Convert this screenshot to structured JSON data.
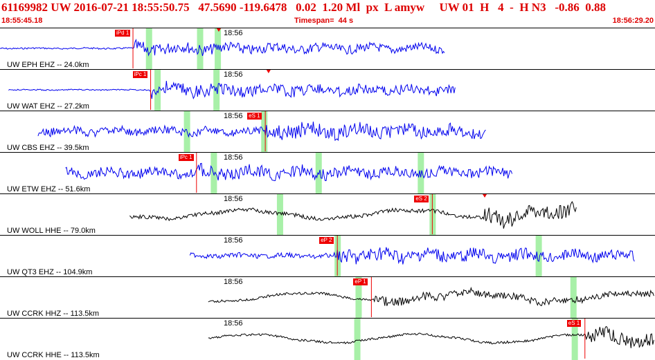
{
  "header": {
    "event_line": "61169982 UW 2016-07-21 18:55:50.75   47.5690 -119.6478   0.02  1.20 Ml  px  L amyw     UW 01  H   4  -  H N3   -0.86  0.88",
    "start_time": "18:55:45.18",
    "timespan": "Timespan=  44 s",
    "end_time": "18:56:29.20"
  },
  "colors": {
    "header_text": "#dd0000",
    "trace_blue": "#0000ee",
    "trace_black": "#000000",
    "pick": "#ee0000",
    "window": "#a8f0a8"
  },
  "panels": [
    {
      "label": "UW EPH EHZ -- 24.0km",
      "time_mark": "18:56",
      "color": "blue",
      "trace": {
        "start_frac": 0.0,
        "onset_frac": 0.205,
        "end_frac": 0.68,
        "amp": 0.34,
        "noise": 0.04
      },
      "picks": [
        {
          "label": "iPd 1",
          "time_frac": 0.203
        }
      ],
      "windows": [
        0.227,
        0.305,
        0.332
      ],
      "markers": [
        0.334
      ]
    },
    {
      "label": "UW WAT EHZ -- 27.2km",
      "time_mark": "18:56",
      "color": "blue",
      "trace": {
        "start_frac": 0.013,
        "onset_frac": 0.23,
        "end_frac": 0.695,
        "amp": 0.38,
        "noise": 0.03
      },
      "picks": [
        {
          "label": "iPc 1",
          "time_frac": 0.23
        }
      ],
      "windows": [
        0.24,
        0.33
      ],
      "markers": [
        0.41
      ]
    },
    {
      "label": "UW CBS EHZ -- 39.5km",
      "time_mark": "18:56",
      "color": "blue",
      "trace": {
        "start_frac": 0.058,
        "onset_frac": 0.405,
        "end_frac": 0.742,
        "amp": 0.45,
        "noise": 0.22
      },
      "picks": [
        {
          "label": "eS 1",
          "time_frac": 0.405
        }
      ],
      "windows": [
        0.285,
        0.403
      ],
      "markers": []
    },
    {
      "label": "UW ETW EHZ -- 51.6km",
      "time_mark": "18:56",
      "color": "blue",
      "trace": {
        "start_frac": 0.1,
        "onset_frac": 0.3,
        "end_frac": 0.782,
        "amp": 0.4,
        "noise": 0.25
      },
      "picks": [
        {
          "label": "iPc 1",
          "time_frac": 0.3
        }
      ],
      "windows": [
        0.326,
        0.486,
        0.642
      ],
      "markers": []
    },
    {
      "label": "UW WOLL HHE -- 79.0km",
      "time_mark": "18:56",
      "color": "black",
      "trace": {
        "start_frac": 0.198,
        "onset_frac": 0.74,
        "end_frac": 0.88,
        "amp": 0.45,
        "noise": 0.1
      },
      "picks": [
        {
          "label": "eS 2",
          "time_frac": 0.66
        }
      ],
      "windows": [
        0.427,
        0.66
      ],
      "markers": [
        0.74
      ]
    },
    {
      "label": "UW QT3 EHZ -- 104.9km",
      "time_mark": "18:56",
      "color": "blue",
      "trace": {
        "start_frac": 0.29,
        "onset_frac": 0.515,
        "end_frac": 0.97,
        "amp": 0.42,
        "noise": 0.12
      },
      "picks": [
        {
          "label": "eP 2",
          "time_frac": 0.515
        }
      ],
      "windows": [
        0.515,
        0.822
      ],
      "markers": []
    },
    {
      "label": "UW CCRK HHZ -- 113.5km",
      "time_mark": "18:56",
      "color": "black",
      "trace": {
        "start_frac": 0.318,
        "onset_frac": 0.57,
        "end_frac": 1.0,
        "amp": 0.25,
        "noise": 0.06
      },
      "picks": [
        {
          "label": "eP 1",
          "time_frac": 0.567
        }
      ],
      "windows": [
        0.547,
        0.875
      ],
      "markers": []
    },
    {
      "label": "UW CCRK HHE -- 113.5km",
      "time_mark": "18:56",
      "color": "black",
      "trace": {
        "start_frac": 0.318,
        "onset_frac": 0.895,
        "end_frac": 1.0,
        "amp": 0.4,
        "noise": 0.06
      },
      "picks": [
        {
          "label": "eS 1",
          "time_frac": 0.893
        }
      ],
      "windows": [
        0.545,
        0.877
      ],
      "markers": []
    }
  ]
}
